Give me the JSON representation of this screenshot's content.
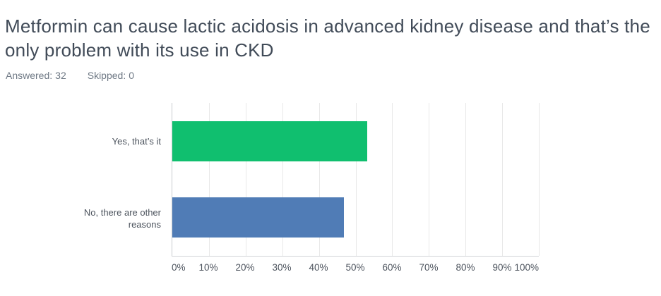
{
  "header": {
    "title": "Metformin can cause lactic acidosis in advanced kidney disease and that’s the only problem with its use in CKD",
    "answered_label": "Answered:",
    "answered_value": "32",
    "skipped_label": "Skipped:",
    "skipped_value": "0"
  },
  "chart_data": {
    "type": "bar",
    "orientation": "horizontal",
    "title": "Metformin can cause lactic acidosis in advanced kidney disease and that’s the only problem with its use in CKD",
    "categories": [
      "Yes, that’s it",
      "No, there are other reasons"
    ],
    "values": [
      53.13,
      46.88
    ],
    "colors": [
      "#10bf6f",
      "#507cb6"
    ],
    "x_ticks": [
      "0%",
      "10%",
      "20%",
      "30%",
      "40%",
      "50%",
      "60%",
      "70%",
      "80%",
      "90%",
      "100%"
    ],
    "xlim": [
      0,
      100
    ],
    "grid": true,
    "legend": "none",
    "answered": 32,
    "skipped": 0
  }
}
